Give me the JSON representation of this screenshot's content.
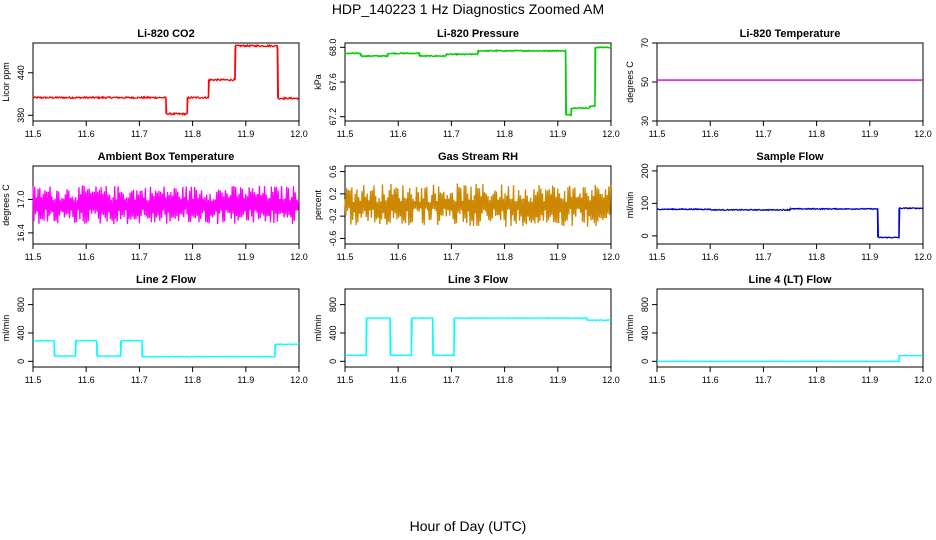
{
  "page": {
    "title": "HDP_140223  1 Hz Diagnostics Zoomed AM",
    "xlabel": "Hour of Day (UTC)"
  },
  "chart_data": [
    {
      "type": "line",
      "title": "Li-820 CO2",
      "ylabel": "Licor ppm",
      "color": "#ff0000",
      "xlim": [
        11.5,
        12.0
      ],
      "ylim": [
        372,
        482
      ],
      "xticks": [
        "11.5",
        "11.6",
        "11.7",
        "11.8",
        "11.9",
        "12.0"
      ],
      "yticks": [
        {
          "v": 380,
          "label": "380"
        },
        {
          "v": 440,
          "label": "440"
        }
      ],
      "noise": 1.2,
      "x": [
        11.5,
        11.75,
        11.75,
        11.79,
        11.79,
        11.83,
        11.83,
        11.88,
        11.88,
        11.96,
        11.96,
        12.0
      ],
      "y": [
        405,
        405,
        382,
        382,
        405,
        405,
        430,
        430,
        478,
        478,
        404,
        404
      ]
    },
    {
      "type": "line",
      "title": "Li-820 Pressure",
      "ylabel": "kPa",
      "color": "#00cc00",
      "xlim": [
        11.5,
        12.0
      ],
      "ylim": [
        67.15,
        68.05
      ],
      "xticks": [
        "11.5",
        "11.6",
        "11.7",
        "11.8",
        "11.9",
        "12.0"
      ],
      "yticks": [
        {
          "v": 67.2,
          "label": "67.2"
        },
        {
          "v": 67.6,
          "label": "67.6"
        },
        {
          "v": 68.0,
          "label": "68.0"
        }
      ],
      "noise": 0.006,
      "marker": "point",
      "x": [
        11.5,
        11.53,
        11.53,
        11.58,
        11.58,
        11.64,
        11.64,
        11.69,
        11.69,
        11.75,
        11.75,
        11.915,
        11.915,
        11.925,
        11.925,
        11.96,
        11.96,
        11.97,
        11.97,
        12.0
      ],
      "y": [
        67.93,
        67.93,
        67.9,
        67.9,
        67.93,
        67.93,
        67.9,
        67.9,
        67.92,
        67.92,
        67.96,
        67.96,
        67.22,
        67.22,
        67.3,
        67.3,
        67.32,
        67.32,
        68.0,
        68.0
      ]
    },
    {
      "type": "line",
      "title": "Li-820 Temperature",
      "ylabel": "degrees C",
      "color": "#cc00cc",
      "xlim": [
        11.5,
        12.0
      ],
      "ylim": [
        30,
        70
      ],
      "xticks": [
        "11.5",
        "11.6",
        "11.7",
        "11.8",
        "11.9",
        "12.0"
      ],
      "yticks": [
        {
          "v": 30,
          "label": "30"
        },
        {
          "v": 50,
          "label": "50"
        },
        {
          "v": 70,
          "label": "70"
        }
      ],
      "noise": 0,
      "x": [
        11.5,
        12.0
      ],
      "y": [
        51,
        51
      ]
    },
    {
      "type": "line",
      "title": "Ambient Box Temperature",
      "ylabel": "degrees C",
      "color": "#ff00ff",
      "xlim": [
        11.5,
        12.0
      ],
      "ylim": [
        16.2,
        17.6
      ],
      "xticks": [
        "11.5",
        "11.6",
        "11.7",
        "11.8",
        "11.9",
        "12.0"
      ],
      "yticks": [
        {
          "v": 16.4,
          "label": "16.4"
        },
        {
          "v": 17.0,
          "label": "17.0"
        }
      ],
      "oscillate": {
        "center": 16.9,
        "amp": 0.35,
        "minAmp": 0.08,
        "step": 0.0016
      },
      "x": [
        11.5,
        12.0
      ],
      "y": [
        16.9,
        16.9
      ]
    },
    {
      "type": "line",
      "title": "Gas Stream RH",
      "ylabel": "percent",
      "color": "#cc8800",
      "xlim": [
        11.5,
        12.0
      ],
      "ylim": [
        -0.7,
        0.7
      ],
      "xticks": [
        "11.5",
        "11.6",
        "11.7",
        "11.8",
        "11.9",
        "12.0"
      ],
      "yticks": [
        {
          "v": -0.6,
          "label": "-0.6"
        },
        {
          "v": -0.2,
          "label": "-0.2"
        },
        {
          "v": 0.2,
          "label": "0.2"
        },
        {
          "v": 0.6,
          "label": "0.6"
        }
      ],
      "marker": "point",
      "oscillate": {
        "center": 0.0,
        "amp": 0.38,
        "minAmp": 0.05,
        "step": 0.0016
      },
      "x": [
        11.5,
        12.0
      ],
      "y": [
        0.0,
        0.0
      ]
    },
    {
      "type": "line",
      "title": "Sample Flow",
      "ylabel": "ml/min",
      "color": "#0000cc",
      "xlim": [
        11.5,
        12.0
      ],
      "ylim": [
        -25,
        215
      ],
      "xticks": [
        "11.5",
        "11.6",
        "11.7",
        "11.8",
        "11.9",
        "12.0"
      ],
      "yticks": [
        {
          "v": 0,
          "label": "0"
        },
        {
          "v": 100,
          "label": "100"
        },
        {
          "v": 200,
          "label": "200"
        }
      ],
      "noise": 1.5,
      "x": [
        11.5,
        11.6,
        11.6,
        11.75,
        11.75,
        11.915,
        11.915,
        11.955,
        11.955,
        12.0
      ],
      "y": [
        82,
        82,
        80,
        80,
        83,
        83,
        -5,
        -5,
        85,
        85
      ]
    },
    {
      "type": "line",
      "title": "Line 2 Flow",
      "ylabel": "ml/min",
      "color": "#00ffff",
      "xlim": [
        11.5,
        12.0
      ],
      "ylim": [
        -80,
        1020
      ],
      "xticks": [
        "11.5",
        "11.6",
        "11.7",
        "11.8",
        "11.9",
        "12.0"
      ],
      "yticks": [
        {
          "v": 0,
          "label": "0"
        },
        {
          "v": 400,
          "label": "400"
        },
        {
          "v": 800,
          "label": "800"
        }
      ],
      "noise": 4,
      "x": [
        11.5,
        11.54,
        11.54,
        11.58,
        11.58,
        11.62,
        11.62,
        11.665,
        11.665,
        11.705,
        11.705,
        11.955,
        11.955,
        12.0
      ],
      "y": [
        290,
        290,
        75,
        75,
        290,
        290,
        75,
        75,
        290,
        290,
        65,
        65,
        240,
        240
      ]
    },
    {
      "type": "line",
      "title": "Line 3 Flow",
      "ylabel": "ml/min",
      "color": "#00ffff",
      "xlim": [
        11.5,
        12.0
      ],
      "ylim": [
        -80,
        1020
      ],
      "xticks": [
        "11.5",
        "11.6",
        "11.7",
        "11.8",
        "11.9",
        "12.0"
      ],
      "yticks": [
        {
          "v": 0,
          "label": "0"
        },
        {
          "v": 400,
          "label": "400"
        },
        {
          "v": 800,
          "label": "800"
        }
      ],
      "noise": 4,
      "x": [
        11.5,
        11.54,
        11.54,
        11.585,
        11.585,
        11.625,
        11.625,
        11.665,
        11.665,
        11.705,
        11.705,
        11.955,
        11.955,
        12.0
      ],
      "y": [
        85,
        85,
        610,
        610,
        85,
        85,
        610,
        610,
        85,
        85,
        610,
        610,
        580,
        580
      ]
    },
    {
      "type": "line",
      "title": "Line 4 (LT) Flow",
      "ylabel": "ml/min",
      "color": "#00ffff",
      "xlim": [
        11.5,
        12.0
      ],
      "ylim": [
        -80,
        1020
      ],
      "xticks": [
        "11.5",
        "11.6",
        "11.7",
        "11.8",
        "11.9",
        "12.0"
      ],
      "yticks": [
        {
          "v": 0,
          "label": "0"
        },
        {
          "v": 400,
          "label": "400"
        },
        {
          "v": 800,
          "label": "800"
        }
      ],
      "noise": 2,
      "x": [
        11.5,
        11.955,
        11.955,
        12.0
      ],
      "y": [
        0,
        0,
        80,
        80
      ]
    }
  ]
}
